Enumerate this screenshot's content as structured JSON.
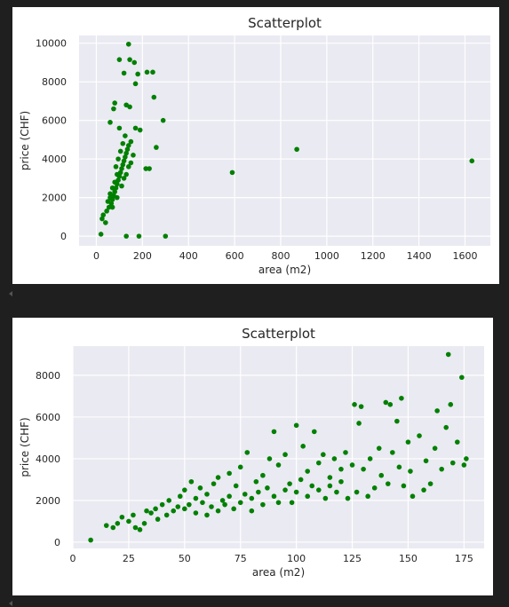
{
  "chart_data": [
    {
      "type": "scatter",
      "title": "Scatterplot",
      "xlabel": "area (m2)",
      "ylabel": "price (CHF)",
      "xlim": [
        -75,
        1710
      ],
      "ylim": [
        -500,
        10400
      ],
      "xticks": [
        0,
        200,
        400,
        600,
        800,
        1000,
        1200,
        1400,
        1600
      ],
      "yticks": [
        0,
        2000,
        4000,
        6000,
        8000,
        10000
      ],
      "grid": true,
      "color": "#008000",
      "points": [
        [
          140,
          9950
        ],
        [
          100,
          9150
        ],
        [
          145,
          9150
        ],
        [
          165,
          9000
        ],
        [
          220,
          8500
        ],
        [
          245,
          8500
        ],
        [
          120,
          8450
        ],
        [
          180,
          8400
        ],
        [
          170,
          7900
        ],
        [
          250,
          7200
        ],
        [
          80,
          6900
        ],
        [
          130,
          6800
        ],
        [
          145,
          6700
        ],
        [
          75,
          6600
        ],
        [
          290,
          6000
        ],
        [
          190,
          5500
        ],
        [
          60,
          5900
        ],
        [
          170,
          5600
        ],
        [
          260,
          4600
        ],
        [
          870,
          4500
        ],
        [
          1630,
          3900
        ],
        [
          590,
          3300
        ],
        [
          215,
          3500
        ],
        [
          230,
          3500
        ],
        [
          20,
          100
        ],
        [
          130,
          0
        ],
        [
          185,
          0
        ],
        [
          300,
          0
        ],
        [
          40,
          700
        ],
        [
          25,
          900
        ],
        [
          30,
          1100
        ],
        [
          45,
          1300
        ],
        [
          55,
          1500
        ],
        [
          65,
          1700
        ],
        [
          70,
          1900
        ],
        [
          75,
          2100
        ],
        [
          80,
          2300
        ],
        [
          85,
          2500
        ],
        [
          90,
          2700
        ],
        [
          95,
          2900
        ],
        [
          100,
          3100
        ],
        [
          105,
          3300
        ],
        [
          110,
          3500
        ],
        [
          115,
          3700
        ],
        [
          120,
          3900
        ],
        [
          125,
          4100
        ],
        [
          130,
          4300
        ],
        [
          135,
          4500
        ],
        [
          140,
          4700
        ],
        [
          150,
          4900
        ],
        [
          60,
          2000
        ],
        [
          70,
          1500
        ],
        [
          50,
          1800
        ],
        [
          90,
          2000
        ],
        [
          110,
          2600
        ],
        [
          120,
          3000
        ],
        [
          130,
          3200
        ],
        [
          140,
          3600
        ],
        [
          150,
          3800
        ],
        [
          160,
          4200
        ],
        [
          85,
          3600
        ],
        [
          95,
          4000
        ],
        [
          105,
          4400
        ],
        [
          115,
          4800
        ],
        [
          125,
          5200
        ],
        [
          100,
          5600
        ],
        [
          90,
          3200
        ],
        [
          80,
          2800
        ],
        [
          70,
          2500
        ],
        [
          60,
          2200
        ]
      ]
    },
    {
      "type": "scatter",
      "title": "Scatterplot",
      "xlabel": "area (m2)",
      "ylabel": "price (CHF)",
      "xlim": [
        0,
        184
      ],
      "ylim": [
        -300,
        9400
      ],
      "xticks": [
        0,
        25,
        50,
        75,
        100,
        125,
        150,
        175
      ],
      "yticks": [
        0,
        2000,
        4000,
        6000,
        8000
      ],
      "grid": true,
      "color": "#008000",
      "points": [
        [
          8,
          100
        ],
        [
          15,
          800
        ],
        [
          18,
          700
        ],
        [
          20,
          900
        ],
        [
          22,
          1200
        ],
        [
          25,
          1000
        ],
        [
          27,
          1300
        ],
        [
          28,
          700
        ],
        [
          30,
          600
        ],
        [
          32,
          900
        ],
        [
          33,
          1500
        ],
        [
          35,
          1400
        ],
        [
          37,
          1600
        ],
        [
          38,
          1100
        ],
        [
          40,
          1800
        ],
        [
          42,
          1300
        ],
        [
          43,
          2000
        ],
        [
          45,
          1500
        ],
        [
          47,
          1700
        ],
        [
          48,
          2200
        ],
        [
          50,
          1600
        ],
        [
          50,
          2500
        ],
        [
          52,
          1800
        ],
        [
          53,
          2900
        ],
        [
          55,
          1400
        ],
        [
          55,
          2100
        ],
        [
          57,
          2600
        ],
        [
          58,
          1900
        ],
        [
          60,
          1300
        ],
        [
          60,
          2300
        ],
        [
          62,
          1700
        ],
        [
          63,
          2800
        ],
        [
          65,
          1500
        ],
        [
          65,
          3100
        ],
        [
          67,
          2000
        ],
        [
          68,
          1800
        ],
        [
          70,
          2200
        ],
        [
          70,
          3300
        ],
        [
          72,
          1600
        ],
        [
          73,
          2700
        ],
        [
          75,
          1900
        ],
        [
          75,
          3600
        ],
        [
          77,
          2300
        ],
        [
          78,
          4300
        ],
        [
          80,
          2100
        ],
        [
          80,
          1500
        ],
        [
          82,
          2900
        ],
        [
          83,
          2400
        ],
        [
          85,
          1800
        ],
        [
          85,
          3200
        ],
        [
          87,
          2600
        ],
        [
          88,
          4000
        ],
        [
          90,
          2200
        ],
        [
          90,
          5300
        ],
        [
          92,
          1900
        ],
        [
          92,
          3700
        ],
        [
          95,
          2500
        ],
        [
          95,
          4200
        ],
        [
          97,
          2800
        ],
        [
          98,
          1900
        ],
        [
          100,
          2400
        ],
        [
          100,
          5600
        ],
        [
          102,
          3000
        ],
        [
          103,
          4600
        ],
        [
          105,
          2200
        ],
        [
          105,
          3400
        ],
        [
          107,
          2700
        ],
        [
          108,
          5300
        ],
        [
          110,
          2500
        ],
        [
          110,
          3800
        ],
        [
          112,
          4200
        ],
        [
          113,
          2100
        ],
        [
          115,
          3100
        ],
        [
          115,
          2700
        ],
        [
          117,
          4000
        ],
        [
          118,
          2400
        ],
        [
          120,
          3500
        ],
        [
          120,
          2900
        ],
        [
          122,
          4300
        ],
        [
          123,
          2100
        ],
        [
          125,
          3700
        ],
        [
          126,
          6600
        ],
        [
          127,
          2400
        ],
        [
          128,
          5700
        ],
        [
          129,
          6500
        ],
        [
          130,
          3500
        ],
        [
          132,
          2200
        ],
        [
          133,
          4000
        ],
        [
          135,
          2600
        ],
        [
          137,
          4500
        ],
        [
          138,
          3200
        ],
        [
          140,
          6700
        ],
        [
          141,
          2800
        ],
        [
          142,
          6600
        ],
        [
          143,
          4300
        ],
        [
          145,
          5800
        ],
        [
          146,
          3600
        ],
        [
          147,
          6900
        ],
        [
          148,
          2700
        ],
        [
          150,
          4800
        ],
        [
          151,
          3400
        ],
        [
          152,
          2200
        ],
        [
          155,
          5100
        ],
        [
          157,
          2500
        ],
        [
          158,
          3900
        ],
        [
          160,
          2800
        ],
        [
          162,
          4500
        ],
        [
          163,
          6300
        ],
        [
          165,
          3500
        ],
        [
          167,
          5500
        ],
        [
          168,
          9000
        ],
        [
          169,
          6600
        ],
        [
          170,
          3800
        ],
        [
          172,
          4800
        ],
        [
          174,
          7900
        ],
        [
          175,
          3700
        ],
        [
          176,
          4000
        ]
      ]
    }
  ]
}
